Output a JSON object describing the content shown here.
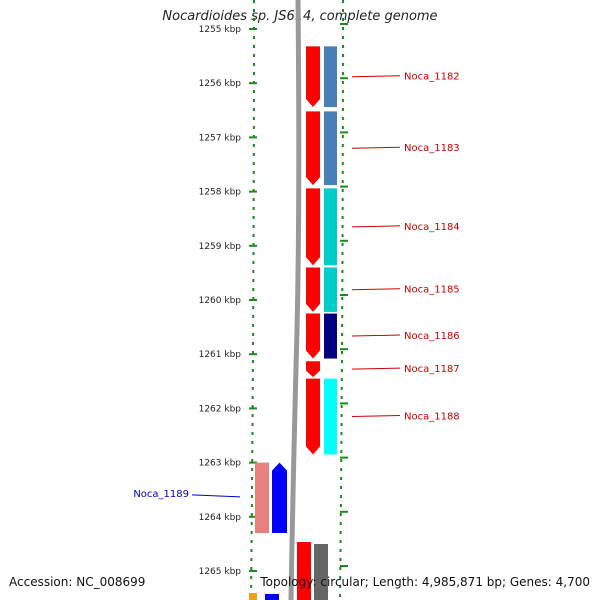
{
  "header": {
    "title": "Nocardioides sp. JS614, complete genome"
  },
  "footer": {
    "accession": "Accession: NC_008699",
    "summary": "Topology: circular; Length: 4,985,871 bp; Genes: 4,700"
  },
  "map": {
    "ticks": [
      {
        "label": "1255 kbp",
        "bp": 1255000
      },
      {
        "label": "1256 kbp",
        "bp": 1256000
      },
      {
        "label": "1257 kbp",
        "bp": 1257000
      },
      {
        "label": "1258 kbp",
        "bp": 1258000
      },
      {
        "label": "1259 kbp",
        "bp": 1259000
      },
      {
        "label": "1260 kbp",
        "bp": 1260000
      },
      {
        "label": "1261 kbp",
        "bp": 1261000
      },
      {
        "label": "1262 kbp",
        "bp": 1262000
      },
      {
        "label": "1263 kbp",
        "bp": 1263000
      },
      {
        "label": "1264 kbp",
        "bp": 1264000
      },
      {
        "label": "1265 kbp",
        "bp": 1265000
      }
    ],
    "genes": [
      {
        "name": "Noca_1182",
        "strand": "forward",
        "start": 1255320,
        "end": 1256440,
        "inner_color": "#ff0000",
        "outer_color": "#4a7fb5",
        "label_color": "#cc0000"
      },
      {
        "name": "Noca_1183",
        "strand": "forward",
        "start": 1256520,
        "end": 1257880,
        "inner_color": "#ff0000",
        "outer_color": "#4a7fb5",
        "label_color": "#cc0000"
      },
      {
        "name": "Noca_1184",
        "strand": "forward",
        "start": 1257940,
        "end": 1259360,
        "inner_color": "#ff0000",
        "outer_color": "#00cccc",
        "label_color": "#cc0000"
      },
      {
        "name": "Noca_1185",
        "strand": "forward",
        "start": 1259400,
        "end": 1260220,
        "inner_color": "#ff0000",
        "outer_color": "#00cccc",
        "label_color": "#cc0000"
      },
      {
        "name": "Noca_1186",
        "strand": "forward",
        "start": 1260250,
        "end": 1261080,
        "inner_color": "#ff0000",
        "outer_color": "#000080",
        "label_color": "#cc0000"
      },
      {
        "name": "Noca_1187",
        "strand": "forward",
        "start": 1261130,
        "end": 1261420,
        "inner_color": "#ff0000",
        "outer_color": "",
        "label_color": "#cc0000"
      },
      {
        "name": "Noca_1188",
        "strand": "forward",
        "start": 1261450,
        "end": 1262850,
        "inner_color": "#ff0000",
        "outer_color": "#00ffff",
        "label_color": "#cc0000"
      },
      {
        "name": "Noca_1189",
        "strand": "reverse",
        "start": 1263000,
        "end": 1264300,
        "inner_color": "#0000ff",
        "outer_color": "#e88080",
        "label_color": "#0000cc"
      }
    ]
  }
}
